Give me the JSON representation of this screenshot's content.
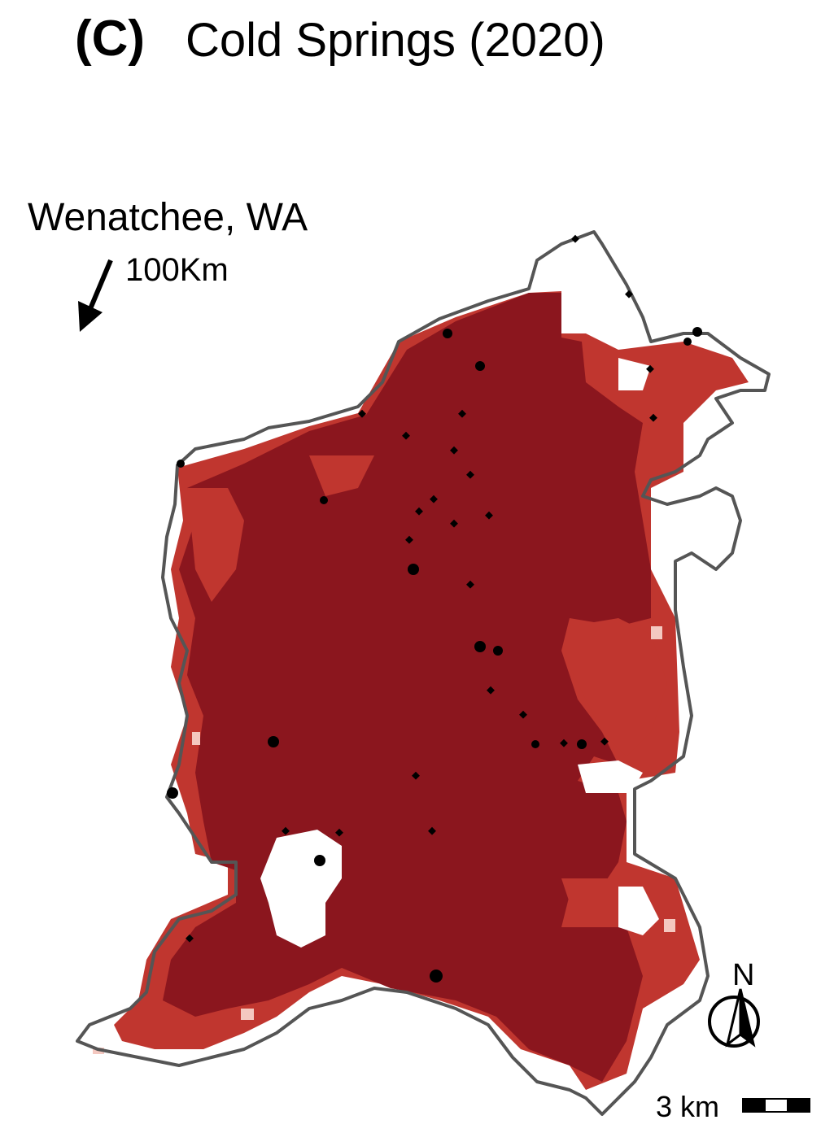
{
  "panel": {
    "label": "(C)",
    "title": "Cold Springs (2020)"
  },
  "reference": {
    "city": "Wenatchee, WA",
    "distance": "100Km",
    "direction_icon": "arrow-southwest-icon"
  },
  "map": {
    "fill_colors": {
      "high": "#8b161e",
      "moderate": "#c0362f",
      "low": "#f4c8c0",
      "unburned": "#ffffff",
      "boundary": "#555555",
      "points": "#000000"
    }
  },
  "north_arrow": {
    "label": "N"
  },
  "scale_bar": {
    "label": "3 km"
  }
}
